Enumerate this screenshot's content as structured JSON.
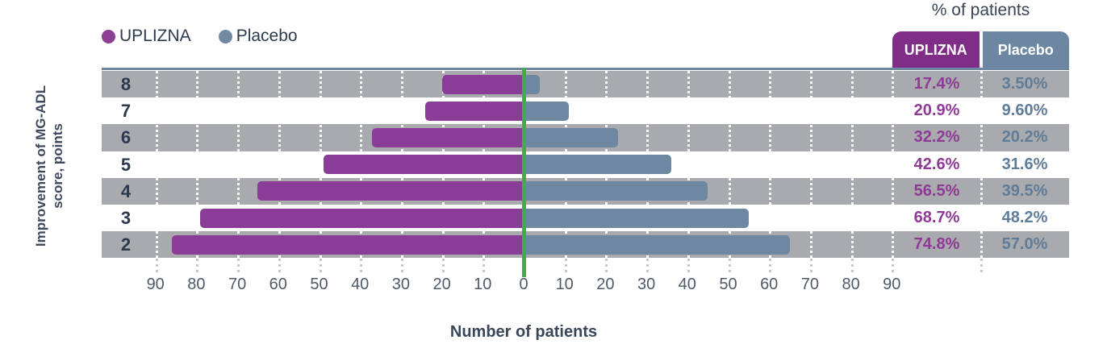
{
  "legend": {
    "items": [
      {
        "label": "UPLIZNA",
        "color": "#8c3f93"
      },
      {
        "label": "Placebo",
        "color": "#7289a2"
      }
    ]
  },
  "y_axis": {
    "title_line1": "Improvement of MG-ADL",
    "title_line2": "score, points"
  },
  "x_axis": {
    "title": "Number of patients",
    "tick_labels": [
      "90",
      "80",
      "70",
      "60",
      "50",
      "40",
      "30",
      "20",
      "10",
      "0",
      "10",
      "20",
      "30",
      "40",
      "50",
      "60",
      "70",
      "80",
      "90"
    ]
  },
  "table": {
    "title": "% of patients",
    "headers": [
      {
        "label": "UPLIZNA",
        "color": "#7f2d87"
      },
      {
        "label": "Placebo",
        "color": "#6d87a2"
      }
    ]
  },
  "colors": {
    "uplizna_bar": "#8a3d96",
    "placebo_bar": "#6f88a1",
    "band": "#a8aaad",
    "zero_line": "#44aa4b",
    "top_border": "#6d87a2",
    "uplizna_pct_text": "#8e3a96",
    "placebo_pct_text": "#5f7d99"
  },
  "chart_data": {
    "type": "bar",
    "subtype": "butterfly",
    "title": "",
    "categories": [
      "8",
      "7",
      "6",
      "5",
      "4",
      "3",
      "2"
    ],
    "category_axis_title": "Improvement of MG-ADL score, points",
    "value_axis_title": "Number of patients",
    "value_axis_range_each_side": [
      0,
      90
    ],
    "gridline_interval": 10,
    "grid": "on",
    "legend_position": "top-left",
    "banded_categories": [
      "8",
      "6",
      "4",
      "2"
    ],
    "series": [
      {
        "name": "UPLIZNA",
        "side": "left",
        "counts": [
          20,
          24,
          37,
          49,
          65,
          79,
          86
        ],
        "percentages": [
          "17.4%",
          "20.9%",
          "32.2%",
          "42.6%",
          "56.5%",
          "68.7%",
          "74.8%"
        ]
      },
      {
        "name": "Placebo",
        "side": "right",
        "counts": [
          4,
          11,
          23,
          36,
          45,
          55,
          65
        ],
        "percentages": [
          "3.50%",
          "9.60%",
          "20.2%",
          "31.6%",
          "39.5%",
          "48.2%",
          "57.0%"
        ]
      }
    ],
    "percent_table_title": "% of patients"
  }
}
